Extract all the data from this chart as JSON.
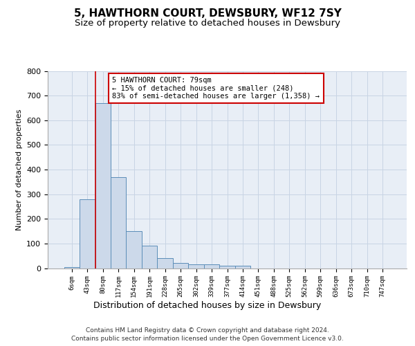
{
  "title1": "5, HAWTHORN COURT, DEWSBURY, WF12 7SY",
  "title2": "Size of property relative to detached houses in Dewsbury",
  "xlabel": "Distribution of detached houses by size in Dewsbury",
  "ylabel": "Number of detached properties",
  "bar_labels": [
    "6sqm",
    "43sqm",
    "80sqm",
    "117sqm",
    "154sqm",
    "191sqm",
    "228sqm",
    "265sqm",
    "302sqm",
    "339sqm",
    "377sqm",
    "414sqm",
    "451sqm",
    "488sqm",
    "525sqm",
    "562sqm",
    "599sqm",
    "636sqm",
    "673sqm",
    "710sqm",
    "747sqm"
  ],
  "bar_heights": [
    5,
    280,
    670,
    370,
    150,
    90,
    40,
    20,
    15,
    15,
    10,
    10,
    0,
    0,
    0,
    0,
    0,
    0,
    0,
    0,
    0
  ],
  "bar_color": "#ccd9ea",
  "bar_edge_color": "#5b8db8",
  "annotation_text": "5 HAWTHORN COURT: 79sqm\n← 15% of detached houses are smaller (248)\n83% of semi-detached houses are larger (1,358) →",
  "annotation_box_color": "#ffffff",
  "annotation_box_edge_color": "#cc0000",
  "property_line_color": "#cc0000",
  "ylim": [
    0,
    800
  ],
  "yticks": [
    0,
    100,
    200,
    300,
    400,
    500,
    600,
    700,
    800
  ],
  "grid_color": "#c8d4e4",
  "background_color": "#e8eef6",
  "footer1": "Contains HM Land Registry data © Crown copyright and database right 2024.",
  "footer2": "Contains public sector information licensed under the Open Government Licence v3.0.",
  "title_fontsize": 11,
  "subtitle_fontsize": 9.5
}
